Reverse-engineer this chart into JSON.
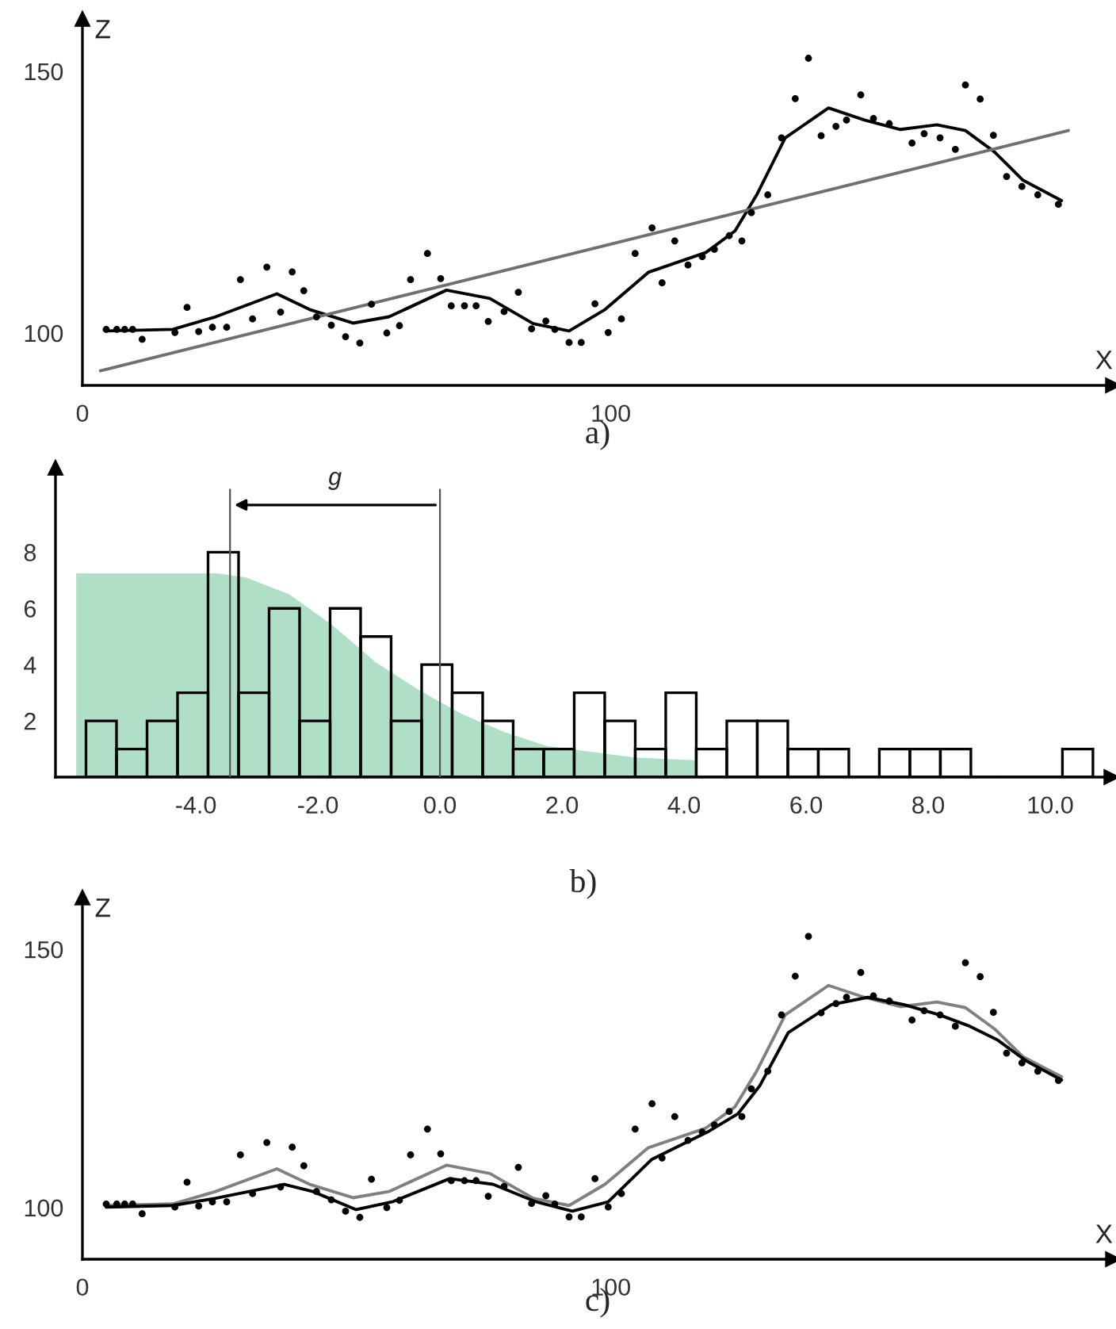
{
  "chart_data": [
    {
      "type": "scatter",
      "xlabel": "X",
      "ylabel": "Z",
      "xlim": [
        0,
        195
      ],
      "ylim": [
        90,
        160
      ],
      "xticks": [
        0,
        100
      ],
      "yticks": [
        100,
        150
      ],
      "grid": false,
      "annotations": [
        "a)"
      ],
      "series": [
        {
          "type": "scatter",
          "color": "#000000",
          "marker": "circle",
          "x": [
            4.5,
            6.5,
            8.0,
            9.5,
            11.3,
            17.5,
            19.8,
            22.0,
            24.6,
            27.3,
            29.9,
            32.2,
            34.9,
            37.5,
            39.7,
            41.9,
            44.3,
            47.1,
            49.8,
            52.5,
            54.7,
            57.6,
            60.0,
            62.1,
            65.3,
            67.8,
            69.8,
            72.3,
            74.5,
            76.8,
            79.8,
            82.5,
            85.0,
            87.7,
            89.4,
            92.1,
            94.4,
            97.0,
            99.5,
            102.0,
            104.6,
            107.8,
            109.7,
            112.1,
            114.6,
            117.3,
            119.6,
            122.4,
            124.8,
            126.6,
            129.7,
            132.3,
            134.9,
            137.4,
            139.8,
            142.6,
            144.6,
            147.3,
            149.7,
            152.7,
            157.0,
            159.3,
            162.3,
            165.2,
            167.1,
            169.9,
            172.4,
            174.9,
            177.8,
            180.8,
            184.7
          ],
          "values": [
            100.7,
            100.7,
            100.7,
            100.7,
            98.8,
            100.1,
            104.9,
            100.3,
            101.1,
            101.1,
            110.2,
            102.7,
            112.6,
            104.0,
            111.7,
            108.1,
            103.1,
            101.5,
            99.3,
            98.1,
            105.5,
            100.0,
            101.4,
            110.2,
            115.2,
            110.4,
            105.2,
            105.2,
            105.2,
            102.2,
            104.1,
            107.8,
            100.8,
            102.3,
            100.7,
            98.2,
            98.2,
            105.6,
            100.1,
            102.7,
            115.2,
            120.1,
            109.6,
            117.6,
            113.0,
            114.6,
            116.0,
            118.6,
            117.6,
            123.0,
            126.4,
            137.3,
            144.8,
            152.5,
            137.7,
            139.5,
            140.7,
            145.5,
            141.0,
            140.0,
            136.3,
            138.1,
            137.3,
            135.1,
            147.4,
            144.7,
            137.8,
            129.9,
            128.0,
            126.4,
            124.6
          ]
        },
        {
          "type": "line",
          "color": "#000000",
          "line_style": "solid",
          "x": [
            4.5,
            17.1,
            25.2,
            36.8,
            43.0,
            51.2,
            58.0,
            68.9,
            77.1,
            85.3,
            92.1,
            98.9,
            107.1,
            118.0,
            123.5,
            127.6,
            133.0,
            141.2,
            148.0,
            154.8,
            161.7,
            167.1,
            172.6,
            178.0,
            185.3
          ],
          "values": [
            100.4,
            100.7,
            103.1,
            107.5,
            104.5,
            101.9,
            103.1,
            108.2,
            106.6,
            101.8,
            100.4,
            104.5,
            111.6,
            115.4,
            119.5,
            126.4,
            137.3,
            143.0,
            140.7,
            138.9,
            139.8,
            138.7,
            134.6,
            129.2,
            125.3
          ]
        },
        {
          "type": "line",
          "color": "#707070",
          "line_style": "solid",
          "x": [
            3.4,
            186.6
          ],
          "values": [
            92.8,
            138.7
          ]
        }
      ]
    },
    {
      "type": "histogram",
      "xlim": [
        -6.3,
        11.0
      ],
      "ylim": [
        0,
        11
      ],
      "xticks": [
        {
          "value": -4.0,
          "label": "-4.0"
        },
        {
          "value": -2.0,
          "label": "-2.0"
        },
        {
          "value": 0.0,
          "label": "0.0"
        },
        {
          "value": 2.0,
          "label": "2.0"
        },
        {
          "value": 4.0,
          "label": "4.0"
        },
        {
          "value": 6.0,
          "label": "6.0"
        },
        {
          "value": 8.0,
          "label": "8.0"
        },
        {
          "value": 10.0,
          "label": "10.0"
        }
      ],
      "yticks": [
        2,
        4,
        6,
        8
      ],
      "grid": false,
      "color": "#000000",
      "bins": [
        -5.8,
        -5.3,
        -4.8,
        -4.3,
        -3.8,
        -3.3,
        -2.8,
        -2.3,
        -1.8,
        -1.3,
        -0.8,
        -0.3,
        0.2,
        0.7,
        1.2,
        1.7,
        2.2,
        2.7,
        3.2,
        3.7,
        4.2,
        4.7,
        5.2,
        5.7,
        6.2,
        6.7,
        7.2,
        7.7,
        8.2,
        8.7,
        9.2,
        9.7,
        10.2,
        10.7
      ],
      "values": [
        2,
        1,
        2,
        3,
        8,
        3,
        6,
        2,
        6,
        5,
        2,
        4,
        3,
        2,
        1,
        1,
        3,
        2,
        1,
        3,
        1,
        2,
        2,
        1,
        1,
        0,
        1,
        1,
        1,
        0,
        0,
        0,
        1
      ],
      "series": [
        {
          "type": "area",
          "color": "#b0dfc8",
          "x": [
            -5.96,
            -3.65,
            -3.18,
            -2.47,
            -1.76,
            -1.06,
            -0.35,
            0.35,
            1.06,
            1.76,
            2.47,
            3.18,
            4.18
          ],
          "values": [
            7.25,
            7.25,
            7.1,
            6.5,
            5.4,
            4.1,
            3.1,
            2.25,
            1.6,
            1.1,
            0.9,
            0.7,
            0.6
          ]
        }
      ],
      "ref_lines": [
        {
          "axis": "x",
          "value": -3.44,
          "color": "#555555"
        },
        {
          "axis": "x",
          "value": 0.0,
          "color": "#555555"
        }
      ],
      "annotations": [
        "g",
        "b)"
      ]
    },
    {
      "type": "scatter",
      "xlabel": "X",
      "ylabel": "Z",
      "xlim": [
        0,
        195
      ],
      "ylim": [
        90,
        160
      ],
      "xticks": [
        0,
        100
      ],
      "yticks": [
        100,
        150
      ],
      "grid": false,
      "annotations": [
        "c)"
      ],
      "series": [
        {
          "type": "scatter",
          "color": "#000000",
          "marker": "circle",
          "x": [
            4.5,
            6.5,
            8.0,
            9.5,
            11.3,
            17.5,
            19.8,
            22.0,
            24.6,
            27.3,
            29.9,
            32.2,
            34.9,
            37.5,
            39.7,
            41.9,
            44.3,
            47.1,
            49.8,
            52.5,
            54.7,
            57.6,
            60.0,
            62.1,
            65.3,
            67.8,
            69.8,
            72.3,
            74.5,
            76.8,
            79.8,
            82.5,
            85.0,
            87.7,
            89.4,
            92.1,
            94.4,
            97.0,
            99.5,
            102.0,
            104.6,
            107.8,
            109.7,
            112.1,
            114.6,
            117.3,
            119.6,
            122.4,
            124.8,
            126.6,
            129.7,
            132.3,
            134.9,
            137.4,
            139.8,
            142.6,
            144.6,
            147.3,
            149.7,
            152.7,
            157.0,
            159.3,
            162.3,
            165.2,
            167.1,
            169.9,
            172.4,
            174.9,
            177.8,
            180.8,
            184.7
          ],
          "values": [
            100.7,
            100.7,
            100.7,
            100.7,
            98.8,
            100.1,
            104.9,
            100.3,
            101.1,
            101.1,
            110.2,
            102.7,
            112.6,
            104.0,
            111.7,
            108.1,
            103.1,
            101.5,
            99.3,
            98.1,
            105.5,
            100.0,
            101.4,
            110.2,
            115.2,
            110.4,
            105.2,
            105.2,
            105.2,
            102.2,
            104.1,
            107.8,
            100.8,
            102.3,
            100.7,
            98.2,
            98.2,
            105.6,
            100.1,
            102.7,
            115.2,
            120.1,
            109.6,
            117.6,
            113.0,
            114.6,
            116.0,
            118.6,
            117.6,
            123.0,
            126.4,
            137.3,
            144.8,
            152.5,
            137.7,
            139.5,
            140.7,
            145.5,
            141.0,
            140.0,
            136.3,
            138.1,
            137.3,
            135.1,
            147.4,
            144.7,
            137.8,
            129.9,
            128.0,
            126.4,
            124.6
          ]
        },
        {
          "type": "line",
          "color": "#808080",
          "line_style": "solid",
          "x": [
            4.5,
            17.1,
            25.2,
            36.8,
            43.0,
            51.2,
            58.0,
            68.9,
            77.1,
            85.3,
            92.1,
            98.9,
            107.1,
            118.0,
            123.5,
            127.6,
            133.0,
            141.2,
            148.0,
            154.8,
            161.7,
            167.1,
            172.6,
            178.0,
            185.3
          ],
          "values": [
            100.4,
            100.7,
            103.1,
            107.5,
            104.5,
            101.9,
            103.1,
            108.2,
            106.6,
            101.8,
            100.4,
            104.5,
            111.6,
            115.4,
            119.5,
            126.4,
            137.3,
            143.0,
            140.7,
            138.9,
            139.8,
            138.7,
            134.6,
            129.2,
            125.3
          ]
        },
        {
          "type": "line",
          "color": "#000000",
          "line_style": "solid",
          "x": [
            4.5,
            17.1,
            25.2,
            38.2,
            43.6,
            51.8,
            58.6,
            69.5,
            77.7,
            85.9,
            92.7,
            99.5,
            107.7,
            118.6,
            124.1,
            128.2,
            133.6,
            141.8,
            148.6,
            155.4,
            162.2,
            167.7,
            173.1,
            178.6,
            185.3
          ],
          "values": [
            100.1,
            100.4,
            101.8,
            104.5,
            103.1,
            99.6,
            101.1,
            105.6,
            104.5,
            101.1,
            99.3,
            101.1,
            109.3,
            114.8,
            118.2,
            123.6,
            133.9,
            139.3,
            140.7,
            139.3,
            137.3,
            135.2,
            132.5,
            128.4,
            124.7
          ]
        }
      ]
    }
  ]
}
